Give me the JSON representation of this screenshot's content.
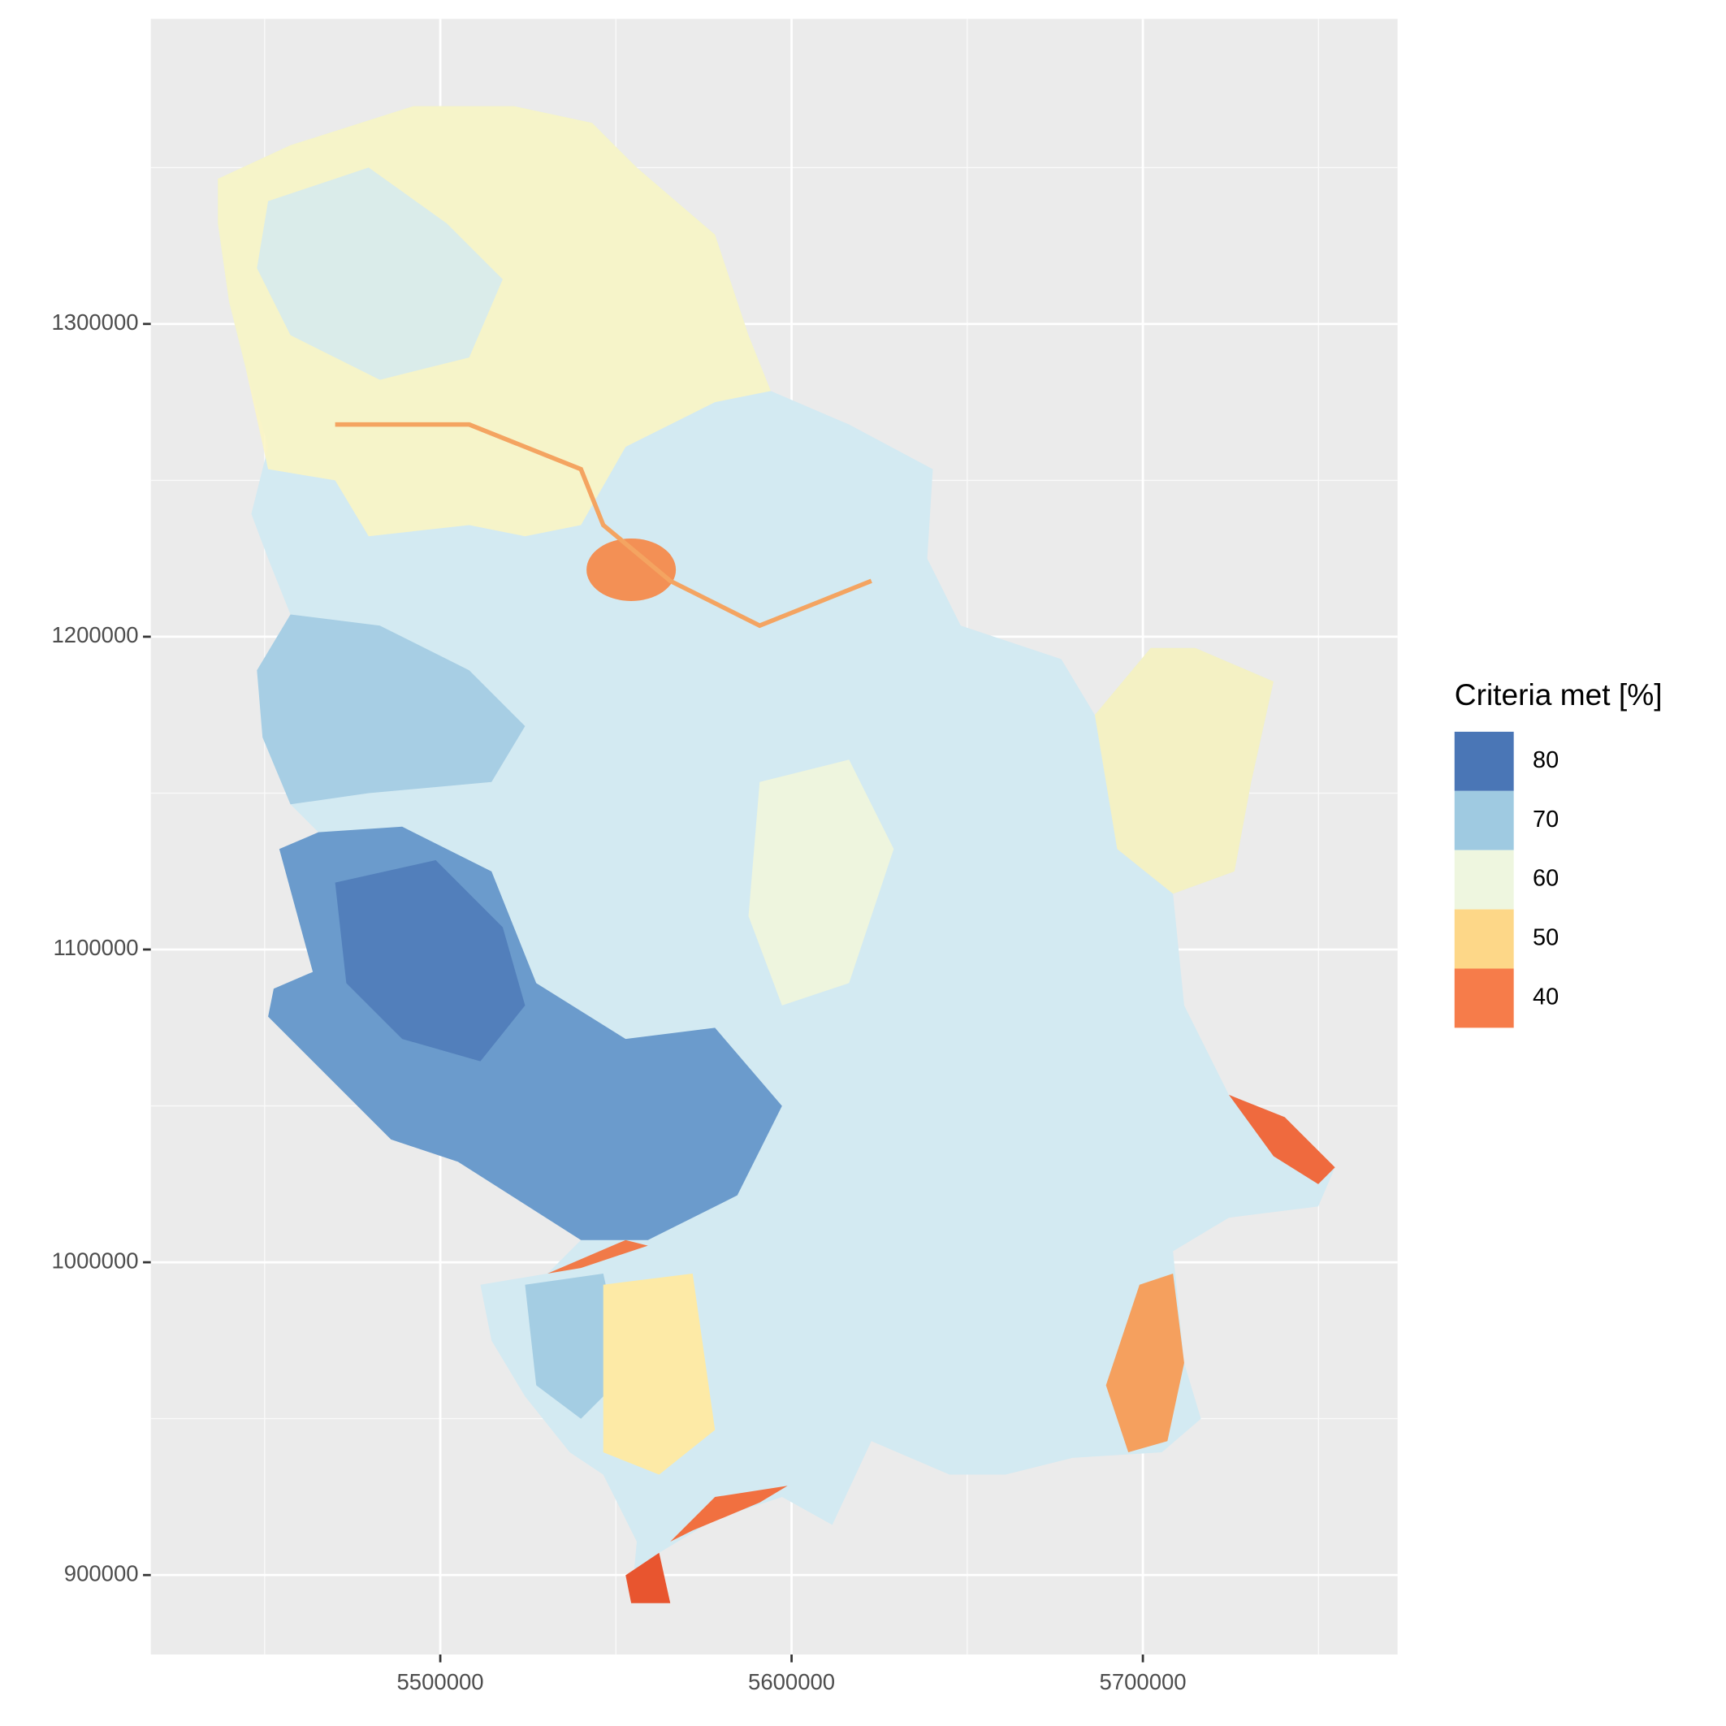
{
  "map": {
    "type": "raster",
    "xlim": [
      5417600,
      5772500
    ],
    "ylim": [
      874600,
      1397500
    ],
    "xticks": [
      5500000,
      5600000,
      5700000
    ],
    "yticks": [
      900000,
      1000000,
      1100000,
      1200000,
      1300000
    ],
    "xminor": [
      5450000,
      5550000,
      5650000,
      5750000
    ],
    "yminor": [
      950000,
      1050000,
      1150000,
      1250000,
      1350000
    ],
    "grid": true,
    "legend": {
      "title": "Criteria met [%]",
      "position": "right",
      "entries": [
        {
          "value": 80,
          "color": "#4a76b6"
        },
        {
          "value": 70,
          "color": "#9fcae1"
        },
        {
          "value": 60,
          "color": "#eef6df"
        },
        {
          "value": 50,
          "color": "#fdd788"
        },
        {
          "value": 40,
          "color": "#f67c4a"
        }
      ]
    }
  }
}
